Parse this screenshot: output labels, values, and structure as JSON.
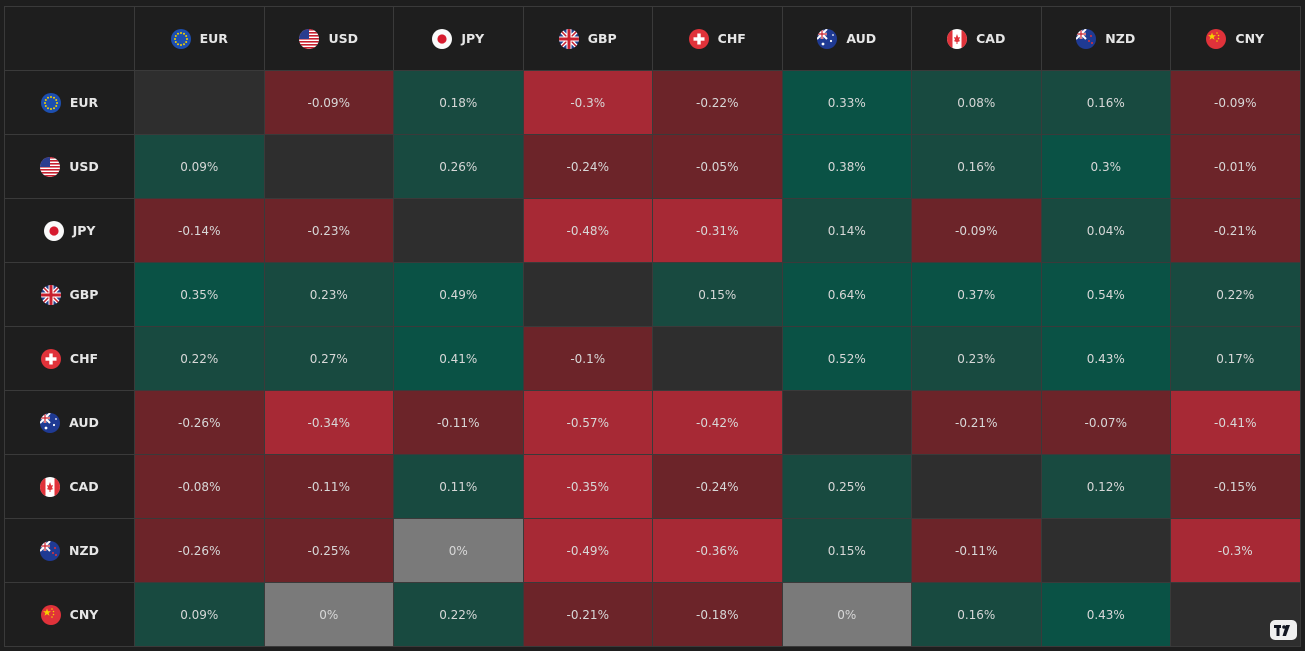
{
  "currencies": [
    {
      "code": "EUR",
      "flag": "eu-flag-icon"
    },
    {
      "code": "USD",
      "flag": "us-flag-icon"
    },
    {
      "code": "JPY",
      "flag": "jp-flag-icon"
    },
    {
      "code": "GBP",
      "flag": "gb-flag-icon"
    },
    {
      "code": "CHF",
      "flag": "ch-flag-icon"
    },
    {
      "code": "AUD",
      "flag": "au-flag-icon"
    },
    {
      "code": "CAD",
      "flag": "ca-flag-icon"
    },
    {
      "code": "NZD",
      "flag": "nz-flag-icon"
    },
    {
      "code": "CNY",
      "flag": "cn-flag-icon"
    }
  ],
  "matrix": [
    [
      "",
      "-0.09%",
      "0.18%",
      "-0.3%",
      "-0.22%",
      "0.33%",
      "0.08%",
      "0.16%",
      "-0.09%"
    ],
    [
      "0.09%",
      "",
      "0.26%",
      "-0.24%",
      "-0.05%",
      "0.38%",
      "0.16%",
      "0.3%",
      "-0.01%"
    ],
    [
      "-0.14%",
      "-0.23%",
      "",
      "-0.48%",
      "-0.31%",
      "0.14%",
      "-0.09%",
      "0.04%",
      "-0.21%"
    ],
    [
      "0.35%",
      "0.23%",
      "0.49%",
      "",
      "0.15%",
      "0.64%",
      "0.37%",
      "0.54%",
      "0.22%"
    ],
    [
      "0.22%",
      "0.27%",
      "0.41%",
      "-0.1%",
      "",
      "0.52%",
      "0.23%",
      "0.43%",
      "0.17%"
    ],
    [
      "-0.26%",
      "-0.34%",
      "-0.11%",
      "-0.57%",
      "-0.42%",
      "",
      "-0.21%",
      "-0.07%",
      "-0.41%"
    ],
    [
      "-0.08%",
      "-0.11%",
      "0.11%",
      "-0.35%",
      "-0.24%",
      "0.25%",
      "",
      "0.12%",
      "-0.15%"
    ],
    [
      "-0.26%",
      "-0.25%",
      "0%",
      "-0.49%",
      "-0.36%",
      "0.15%",
      "-0.11%",
      "",
      "-0.3%"
    ],
    [
      "0.09%",
      "0%",
      "0.22%",
      "-0.21%",
      "-0.18%",
      "0%",
      "0.16%",
      "0.43%",
      ""
    ]
  ],
  "colors": {
    "strong_green": "#0a5245",
    "green": "#184a40",
    "dark_red": "#6c2429",
    "red": "#a72935",
    "neutral": "#7a7a7a",
    "diagonal": "#2e2e2e",
    "header_bg": "#1e1e1e"
  },
  "logo": {
    "name": "tradingview-logo-icon"
  }
}
